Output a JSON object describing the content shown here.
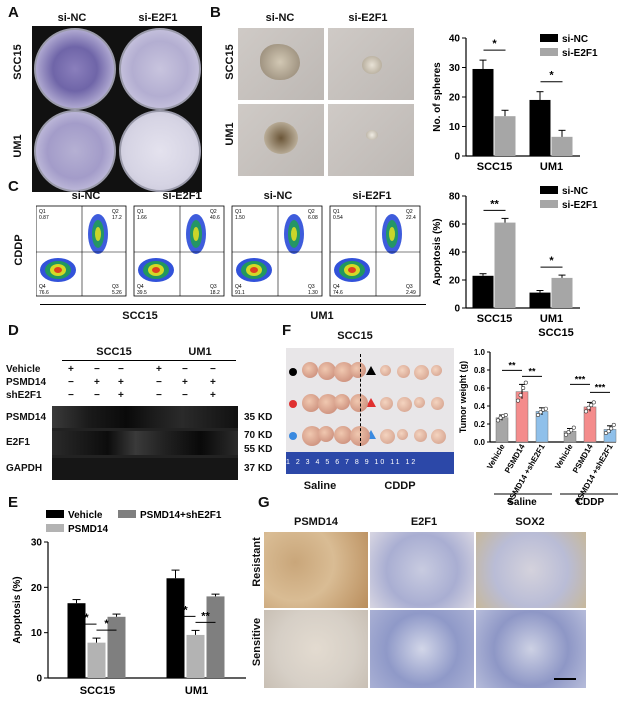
{
  "panel_labels": {
    "A": "A",
    "B": "B",
    "C": "C",
    "D": "D",
    "E": "E",
    "F": "F",
    "G": "G"
  },
  "panel_a": {
    "columns": [
      "si-NC",
      "si-E2F1"
    ],
    "rows": [
      "SCC15",
      "UM1"
    ]
  },
  "panel_b_images": {
    "columns": [
      "si-NC",
      "si-E2F1"
    ],
    "rows": [
      "SCC15",
      "UM1"
    ]
  },
  "panel_c_flow": {
    "columns": [
      "si-NC",
      "si-E2F1",
      "si-NC",
      "si-E2F1"
    ],
    "ylabel": "CDDP",
    "groups": [
      "SCC15",
      "UM1"
    ],
    "quadrants": [
      {
        "q1": "0.87",
        "q2": "17.2",
        "q3": "5.26",
        "q4": "76.6"
      },
      {
        "q1": "1.66",
        "q2": "40.6",
        "q3": "18.2",
        "q4": "39.5"
      },
      {
        "q1": "1.50",
        "q2": "6.08",
        "q3": "1.30",
        "q4": "91.1"
      },
      {
        "q1": "0.54",
        "q2": "22.4",
        "q3": "2.49",
        "q4": "74.6"
      }
    ],
    "qnames": {
      "q1": "Q1",
      "q2": "Q2",
      "q3": "Q3",
      "q4": "Q4"
    }
  },
  "panel_d": {
    "cell_lines": [
      "SCC15",
      "UM1"
    ],
    "conditions": [
      "Vehicle",
      "PSMD14",
      "shE2F1"
    ],
    "signs": [
      [
        "+",
        "−",
        "−",
        "+",
        "−",
        "−"
      ],
      [
        "−",
        "+",
        "+",
        "−",
        "+",
        "+"
      ],
      [
        "−",
        "−",
        "+",
        "−",
        "−",
        "+"
      ]
    ],
    "blots": [
      "PSMD14",
      "E2F1",
      "GAPDH"
    ],
    "markers": [
      "35 KD",
      "70 KD",
      "55 KD",
      "37 KD"
    ]
  },
  "panel_f_photo": {
    "title": "SCC15",
    "groups": [
      "Saline",
      "CDDP"
    ],
    "ruler": "1 2 3 4 5 6 7 8 9 10 11 12"
  },
  "panel_g": {
    "columns": [
      "PSMD14",
      "E2F1",
      "SOX2"
    ],
    "rows": [
      "Resistant",
      "Sensitive"
    ]
  },
  "charts": {
    "spheres": {
      "type": "bar",
      "ylabel": "No. of spheres",
      "ylim": [
        0,
        40
      ],
      "yticks": [
        0,
        10,
        20,
        30,
        40
      ],
      "categories": [
        "SCC15",
        "UM1"
      ],
      "series": [
        {
          "name": "si-NC",
          "color": "#000000",
          "values": [
            29.5,
            19
          ],
          "errors": [
            3,
            2.8
          ]
        },
        {
          "name": "si-E2F1",
          "color": "#a6a6a6",
          "values": [
            13.5,
            6.5
          ],
          "errors": [
            2,
            2.2
          ]
        }
      ],
      "significance": [
        "*",
        "*"
      ]
    },
    "apoptosis_c": {
      "type": "bar",
      "ylabel": "Apoptosis (%)",
      "ylim": [
        0,
        80
      ],
      "yticks": [
        0,
        20,
        40,
        60,
        80
      ],
      "categories": [
        "SCC15",
        "UM1"
      ],
      "series": [
        {
          "name": "si-NC",
          "color": "#000000",
          "values": [
            23,
            11
          ],
          "errors": [
            1.5,
            1.5
          ]
        },
        {
          "name": "si-E2F1",
          "color": "#a6a6a6",
          "values": [
            61,
            21.5
          ],
          "errors": [
            3,
            2
          ]
        }
      ],
      "significance": [
        "**",
        "*"
      ]
    },
    "tumor_weight": {
      "type": "bar",
      "title": "SCC15",
      "ylabel": "Tumor weight (g)",
      "ylim": [
        0,
        1.0
      ],
      "yticks": [
        "0.0",
        "0.2",
        "0.4",
        "0.6",
        "0.8",
        "1.0"
      ],
      "categories": [
        "Vehicle",
        "PSMD14",
        "PSMD14 +shE2F1",
        "Vehicle",
        "PSMD14",
        "PSMD14 +shE2F1"
      ],
      "groups": [
        "Saline",
        "CDDP"
      ],
      "values": [
        0.27,
        0.56,
        0.34,
        0.12,
        0.39,
        0.14
      ],
      "errors": [
        0.03,
        0.08,
        0.04,
        0.03,
        0.05,
        0.04
      ],
      "colors": [
        "#a6a6a6",
        "#f48c8c",
        "#8fc0ea",
        "#a6a6a6",
        "#f48c8c",
        "#8fc0ea"
      ],
      "points": [
        [
          0.24,
          0.27,
          0.29,
          0.3
        ],
        [
          0.46,
          0.52,
          0.6,
          0.66
        ],
        [
          0.3,
          0.33,
          0.36,
          0.37
        ],
        [
          0.08,
          0.11,
          0.13,
          0.16
        ],
        [
          0.34,
          0.38,
          0.41,
          0.44
        ],
        [
          0.1,
          0.12,
          0.15,
          0.19
        ]
      ],
      "significance": [
        "**",
        "**",
        "***",
        "***"
      ]
    },
    "apoptosis_e": {
      "type": "bar",
      "ylabel": "Apoptosis (%)",
      "ylim": [
        0,
        30
      ],
      "yticks": [
        0,
        10,
        20,
        30
      ],
      "categories": [
        "SCC15",
        "UM1"
      ],
      "series": [
        {
          "name": "Vehicle",
          "color": "#000000",
          "values": [
            16.5,
            22
          ],
          "errors": [
            0.8,
            1.8
          ]
        },
        {
          "name": "PSMD14",
          "color": "#b3b3b3",
          "values": [
            7.8,
            9.5
          ],
          "errors": [
            1,
            1
          ]
        },
        {
          "name": "PSMD14+shE2F1",
          "color": "#7f7f7f",
          "values": [
            13.5,
            18
          ],
          "errors": [
            0.6,
            0.5
          ]
        }
      ],
      "significance": [
        "*",
        "*",
        "*",
        "**"
      ]
    }
  }
}
